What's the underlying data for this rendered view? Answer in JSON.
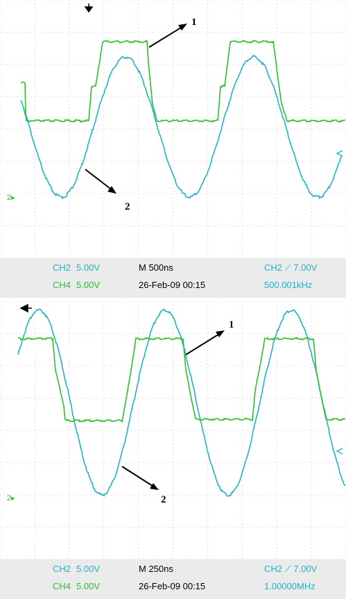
{
  "panels": [
    {
      "labels": {
        "trace1": "1",
        "trace2": "2"
      },
      "ch2_name": "CH2",
      "ch2_scale": "5.00V",
      "ch4_name": "CH4",
      "ch4_scale": "5.00V",
      "timebase": "M 500ns",
      "datetime": "26-Feb-09 00:15",
      "trigger_source": "CH2",
      "trigger_level": "7.00V",
      "frequency": "500.001kHz"
    },
    {
      "labels": {
        "trace1": "1",
        "trace2": "2"
      },
      "ch2_name": "CH2",
      "ch2_scale": "5.00V",
      "ch4_name": "CH4",
      "ch4_scale": "5.00V",
      "timebase": "M 250ns",
      "datetime": "26-Feb-09 00:15",
      "trigger_source": "CH2",
      "trigger_level": "7.00V",
      "frequency": "1.00000MHz"
    }
  ],
  "colors": {
    "grid_bg": "#ffffff",
    "readout_bg": "#ebebeb",
    "ch2": "#1fb3c4",
    "ch4": "#2cbf2c",
    "arrow": "#000000"
  }
}
